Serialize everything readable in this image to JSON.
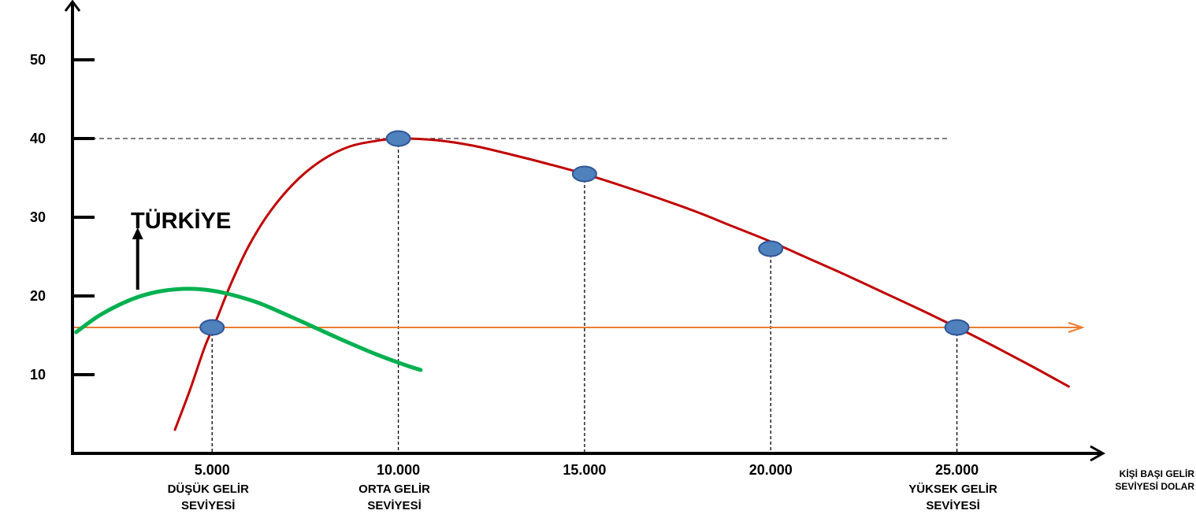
{
  "chart_data": {
    "type": "line",
    "title": "",
    "xlabel": [
      "KİŞİ BAŞI GELİR",
      "SEVİYESİ  DOLAR"
    ],
    "ylabel": "",
    "grid": false,
    "xlim": [
      1250,
      28500
    ],
    "ylim": [
      0,
      57
    ],
    "yticks": [
      {
        "value": 10,
        "label": "10"
      },
      {
        "value": 20,
        "label": "20"
      },
      {
        "value": 30,
        "label": "30"
      },
      {
        "value": 40,
        "label": "40"
      },
      {
        "value": 50,
        "label": "50"
      }
    ],
    "xticks": [
      {
        "value": 5000,
        "label": "5.000",
        "caption": [
          "DÜŞÜK GELİR",
          "SEVİYESİ"
        ]
      },
      {
        "value": 10000,
        "label": "10.000",
        "caption": [
          "ORTA GELİR",
          "SEVİYESİ"
        ]
      },
      {
        "value": 15000,
        "label": "15.000",
        "caption": []
      },
      {
        "value": 20000,
        "label": "20.000",
        "caption": []
      },
      {
        "value": 25000,
        "label": "25.000",
        "caption": [
          "YÜKSEK GELİR",
          "SEVİYESİ"
        ]
      }
    ],
    "series": [
      {
        "role": "red-curve",
        "color": "#c00000",
        "x": [
          4000,
          4400,
          4800,
          5100,
          5500,
          6000,
          6600,
          7300,
          8000,
          8700,
          9400,
          10000,
          11000,
          12000,
          13000,
          14000,
          15000,
          16000,
          17000,
          18000,
          19000,
          20000,
          21000,
          22000,
          23000,
          24000,
          25000,
          26000,
          27000,
          28000
        ],
        "y": [
          3,
          8,
          13.5,
          16.8,
          21.5,
          26.5,
          31,
          34.8,
          37.4,
          39,
          39.7,
          40,
          39.8,
          39.1,
          38,
          36.8,
          35.5,
          34,
          32.4,
          30.7,
          28.8,
          26.9,
          24.8,
          22.7,
          20.5,
          18.3,
          16,
          13.6,
          11.1,
          8.5
        ]
      },
      {
        "role": "green-curve",
        "color": "#00b050",
        "x": [
          1350,
          2000,
          2800,
          3500,
          4200,
          4800,
          5400,
          6200,
          7000,
          7800,
          8600,
          9400,
          10200,
          10600
        ],
        "y": [
          15.4,
          17.6,
          19.5,
          20.5,
          20.9,
          20.8,
          20.3,
          19.2,
          17.6,
          15.9,
          14.2,
          12.6,
          11.2,
          10.6
        ]
      }
    ],
    "threshold": {
      "y": 16,
      "color": "#ed7d31"
    },
    "reference_line": {
      "y": 40,
      "from_x": 1250,
      "to_x": 25000
    },
    "points": [
      {
        "x": 5000,
        "y": 16
      },
      {
        "x": 10000,
        "y": 40
      },
      {
        "x": 15000,
        "y": 35.5
      },
      {
        "x": 20000,
        "y": 26
      },
      {
        "x": 25000,
        "y": 16
      }
    ],
    "point_color": "#4f81bd",
    "annotation": {
      "text": "TÜRKİYE",
      "arrow_x": 3000,
      "arrow_from_y": 20.8,
      "arrow_to_y": 28.5
    }
  }
}
